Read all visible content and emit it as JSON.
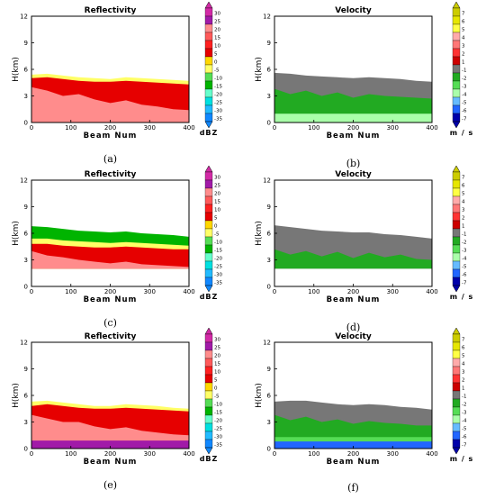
{
  "chart_data": [
    {
      "type": "heatmap",
      "panel": "(a)",
      "title": "Reflectivity",
      "xlabel": "Beam Num",
      "ylabel": "H(km)",
      "xlim": [
        0,
        400
      ],
      "ylim": [
        0,
        12
      ],
      "xticks": [
        0,
        100,
        200,
        300,
        400
      ],
      "yticks": [
        0,
        3,
        6,
        9,
        12
      ],
      "colorbar": {
        "unit": "dBZ",
        "ticks": [
          "30",
          "25",
          "20",
          "15",
          "10",
          "5",
          "0",
          "-5",
          "-10",
          "-15",
          "-20",
          "-25",
          "-30",
          "-35"
        ],
        "colors": [
          "#d22aa6",
          "#a11aa8",
          "#ff8c8c",
          "#ff5a5a",
          "#ff2020",
          "#e60000",
          "#ffd700",
          "#ffff66",
          "#55dd55",
          "#00b400",
          "#66ffcc",
          "#00e0e0",
          "#22bbff",
          "#1188ff"
        ]
      },
      "echo_layers": [
        {
          "color": "#ffff66",
          "from_km": 0,
          "top_km": [
            5.4,
            5.5,
            5.3,
            5.1,
            5.0,
            4.9,
            5.1,
            5.0,
            4.9,
            4.8,
            4.7
          ]
        },
        {
          "color": "#e60000",
          "from_km": 0,
          "top_km": [
            5.0,
            5.1,
            4.9,
            4.7,
            4.6,
            4.6,
            4.7,
            4.6,
            4.5,
            4.4,
            4.3
          ]
        },
        {
          "color": "#ff8c8c",
          "from_km": 0,
          "top_km": [
            4.0,
            3.6,
            3.0,
            3.2,
            2.6,
            2.2,
            2.5,
            2.0,
            1.8,
            1.5,
            1.4
          ]
        }
      ]
    },
    {
      "type": "heatmap",
      "panel": "(b)",
      "title": "Velocity",
      "xlabel": "Beam Num",
      "ylabel": "H(km)",
      "xlim": [
        0,
        400
      ],
      "ylim": [
        0,
        12
      ],
      "xticks": [
        0,
        100,
        200,
        300,
        400
      ],
      "yticks": [
        0,
        3,
        6,
        9,
        12
      ],
      "colorbar": {
        "unit": "m / s",
        "ticks": [
          "7",
          "6",
          "5",
          "4",
          "3",
          "2",
          "1",
          "-1",
          "-2",
          "-3",
          "-4",
          "-5",
          "-6",
          "-7"
        ],
        "colors": [
          "#cccc00",
          "#e6e600",
          "#ffff44",
          "#ffaaaa",
          "#ff7777",
          "#ff3333",
          "#cc0000",
          "#777777",
          "#22aa22",
          "#55dd55",
          "#aaffaa",
          "#66bbff",
          "#2266ff",
          "#0000aa"
        ]
      },
      "echo_layers": [
        {
          "color": "#777777",
          "from_km": 0,
          "top_km": [
            5.6,
            5.5,
            5.3,
            5.2,
            5.1,
            5.0,
            5.1,
            5.0,
            4.9,
            4.7,
            4.6
          ]
        },
        {
          "color": "#22aa22",
          "from_km": 0,
          "top_km": [
            3.8,
            3.2,
            3.6,
            3.0,
            3.4,
            2.8,
            3.2,
            3.0,
            2.9,
            2.8,
            2.7
          ]
        },
        {
          "color": "#aaffaa",
          "from_km": 0,
          "top_km": [
            1.0,
            1.0,
            1.0,
            1.0,
            1.0,
            1.0,
            1.0,
            1.0,
            1.0,
            1.0,
            1.0
          ]
        }
      ]
    },
    {
      "type": "heatmap",
      "panel": "(c)",
      "title": "Reflectivity",
      "xlabel": "Beam Num",
      "ylabel": "H(km)",
      "xlim": [
        0,
        400
      ],
      "ylim": [
        0,
        12
      ],
      "xticks": [
        0,
        100,
        200,
        300,
        400
      ],
      "yticks": [
        0,
        3,
        6,
        9,
        12
      ],
      "colorbar": {
        "unit": "dBZ",
        "ticks": [
          "30",
          "25",
          "20",
          "15",
          "10",
          "5",
          "0",
          "-5",
          "-10",
          "-15",
          "-20",
          "-25",
          "-30",
          "-35"
        ],
        "colors": [
          "#d22aa6",
          "#a11aa8",
          "#ff8c8c",
          "#ff5a5a",
          "#ff2020",
          "#e60000",
          "#ffd700",
          "#ffff66",
          "#55dd55",
          "#00b400",
          "#66ffcc",
          "#00e0e0",
          "#22bbff",
          "#1188ff"
        ]
      },
      "echo_layers": [
        {
          "color": "#00b400",
          "from_km": 2,
          "top_km": [
            6.8,
            6.7,
            6.5,
            6.3,
            6.2,
            6.1,
            6.2,
            6.0,
            5.9,
            5.8,
            5.6
          ]
        },
        {
          "color": "#ffff66",
          "from_km": 2,
          "top_km": [
            5.4,
            5.4,
            5.2,
            5.1,
            5.0,
            4.9,
            5.0,
            4.9,
            4.8,
            4.7,
            4.6
          ]
        },
        {
          "color": "#e60000",
          "from_km": 2,
          "top_km": [
            4.8,
            4.8,
            4.6,
            4.5,
            4.4,
            4.4,
            4.5,
            4.4,
            4.3,
            4.2,
            4.2
          ]
        },
        {
          "color": "#ff8c8c",
          "from_km": 2,
          "top_km": [
            4.0,
            3.5,
            3.3,
            3.0,
            2.8,
            2.6,
            2.8,
            2.5,
            2.4,
            2.3,
            2.2
          ]
        }
      ]
    },
    {
      "type": "heatmap",
      "panel": "(d)",
      "title": "Velocity",
      "xlabel": "Beam Num",
      "ylabel": "H(km)",
      "xlim": [
        0,
        400
      ],
      "ylim": [
        0,
        12
      ],
      "xticks": [
        0,
        100,
        200,
        300,
        400
      ],
      "yticks": [
        0,
        3,
        6,
        9,
        12
      ],
      "colorbar": {
        "unit": "m / s",
        "ticks": [
          "7",
          "6",
          "5",
          "4",
          "3",
          "2",
          "1",
          "-1",
          "-2",
          "-3",
          "-4",
          "-5",
          "-6",
          "-7"
        ],
        "colors": [
          "#cccc00",
          "#e6e600",
          "#ffff44",
          "#ffaaaa",
          "#ff7777",
          "#ff3333",
          "#cc0000",
          "#777777",
          "#22aa22",
          "#55dd55",
          "#aaffaa",
          "#66bbff",
          "#2266ff",
          "#0000aa"
        ]
      },
      "echo_layers": [
        {
          "color": "#777777",
          "from_km": 2,
          "top_km": [
            6.9,
            6.7,
            6.5,
            6.3,
            6.2,
            6.1,
            6.1,
            5.9,
            5.8,
            5.6,
            5.4
          ]
        },
        {
          "color": "#22aa22",
          "from_km": 2,
          "top_km": [
            4.2,
            3.6,
            4.0,
            3.4,
            3.9,
            3.2,
            3.8,
            3.3,
            3.6,
            3.1,
            3.0
          ]
        }
      ]
    },
    {
      "type": "heatmap",
      "panel": "(e)",
      "title": "Reflectivity",
      "xlabel": "Beam Num",
      "ylabel": "H(km)",
      "xlim": [
        0,
        400
      ],
      "ylim": [
        0,
        12
      ],
      "xticks": [
        0,
        100,
        200,
        300,
        400
      ],
      "yticks": [
        0,
        3,
        6,
        9,
        12
      ],
      "colorbar": {
        "unit": "dBZ",
        "ticks": [
          "30",
          "25",
          "20",
          "15",
          "10",
          "5",
          "0",
          "-5",
          "-10",
          "-15",
          "-20",
          "-25",
          "-30",
          "-35"
        ],
        "colors": [
          "#d22aa6",
          "#a11aa8",
          "#ff8c8c",
          "#ff5a5a",
          "#ff2020",
          "#e60000",
          "#ffd700",
          "#ffff66",
          "#55dd55",
          "#00b400",
          "#66ffcc",
          "#00e0e0",
          "#22bbff",
          "#1188ff"
        ]
      },
      "echo_layers": [
        {
          "color": "#ffff66",
          "from_km": 0,
          "top_km": [
            5.3,
            5.4,
            5.2,
            5.0,
            4.8,
            4.8,
            5.0,
            4.9,
            4.8,
            4.6,
            4.5
          ]
        },
        {
          "color": "#e60000",
          "from_km": 0,
          "top_km": [
            4.8,
            5.0,
            4.8,
            4.6,
            4.5,
            4.5,
            4.6,
            4.5,
            4.4,
            4.3,
            4.2
          ]
        },
        {
          "color": "#ff8c8c",
          "from_km": 0,
          "top_km": [
            3.8,
            3.4,
            3.0,
            3.0,
            2.5,
            2.2,
            2.4,
            2.0,
            1.8,
            1.6,
            1.5
          ]
        },
        {
          "color": "#a11aa8",
          "from_km": 0,
          "top_km": [
            0.9,
            0.9,
            0.9,
            0.9,
            0.9,
            0.9,
            0.9,
            0.9,
            0.9,
            0.9,
            0.9
          ]
        }
      ]
    },
    {
      "type": "heatmap",
      "panel": "(f)",
      "title": "Velocity",
      "xlabel": "Beam Num",
      "ylabel": "H(km)",
      "xlim": [
        0,
        400
      ],
      "ylim": [
        0,
        12
      ],
      "xticks": [
        0,
        100,
        200,
        300,
        400
      ],
      "yticks": [
        0,
        3,
        6,
        9,
        12
      ],
      "colorbar": {
        "unit": "m / s",
        "ticks": [
          "7",
          "6",
          "5",
          "4",
          "3",
          "2",
          "1",
          "-1",
          "-2",
          "-3",
          "-4",
          "-5",
          "-6",
          "-7"
        ],
        "colors": [
          "#cccc00",
          "#e6e600",
          "#ffff44",
          "#ffaaaa",
          "#ff7777",
          "#ff3333",
          "#cc0000",
          "#777777",
          "#22aa22",
          "#55dd55",
          "#aaffaa",
          "#66bbff",
          "#2266ff",
          "#0000aa"
        ]
      },
      "echo_layers": [
        {
          "color": "#777777",
          "from_km": 0,
          "top_km": [
            5.3,
            5.4,
            5.4,
            5.2,
            5.0,
            4.9,
            5.0,
            4.9,
            4.7,
            4.6,
            4.4
          ]
        },
        {
          "color": "#22aa22",
          "from_km": 0,
          "top_km": [
            3.8,
            3.2,
            3.6,
            3.0,
            3.3,
            2.8,
            3.1,
            2.9,
            2.8,
            2.6,
            2.6
          ]
        },
        {
          "color": "#55dd55",
          "from_km": 0,
          "top_km": [
            1.3,
            1.3,
            1.3,
            1.3,
            1.3,
            1.3,
            1.3,
            1.3,
            1.3,
            1.3,
            1.3
          ]
        },
        {
          "color": "#2266ff",
          "from_km": 0,
          "top_km": [
            0.8,
            0.8,
            0.8,
            0.8,
            0.8,
            0.8,
            0.8,
            0.8,
            0.8,
            0.8,
            0.8
          ]
        }
      ]
    }
  ]
}
